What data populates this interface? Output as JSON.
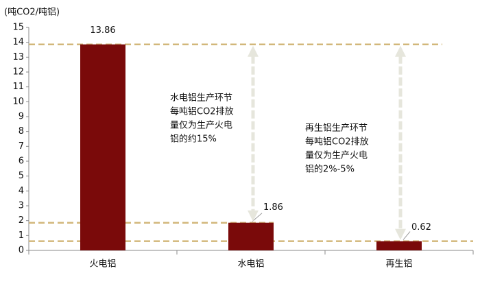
{
  "chart_data": {
    "type": "bar",
    "y_label": "(吨CO2/吨铝)",
    "categories": [
      "火电铝",
      "水电铝",
      "再生铝"
    ],
    "values": [
      13.86,
      1.86,
      0.62
    ],
    "color": "#7a0a0a",
    "ylim": [
      0,
      15
    ],
    "yticks": [
      0,
      1,
      2,
      3,
      4,
      5,
      6,
      7,
      8,
      9,
      10,
      11,
      12,
      13,
      14,
      15
    ],
    "annotations": [
      [
        "水电铝生产环节",
        "每吨铝CO2排放",
        "量仅为生产火电",
        "铝的约15%"
      ],
      [
        "再生铝生产环节",
        "每吨铝CO2排放",
        "量仅为生产火电",
        "铝的2%-5%"
      ]
    ]
  }
}
